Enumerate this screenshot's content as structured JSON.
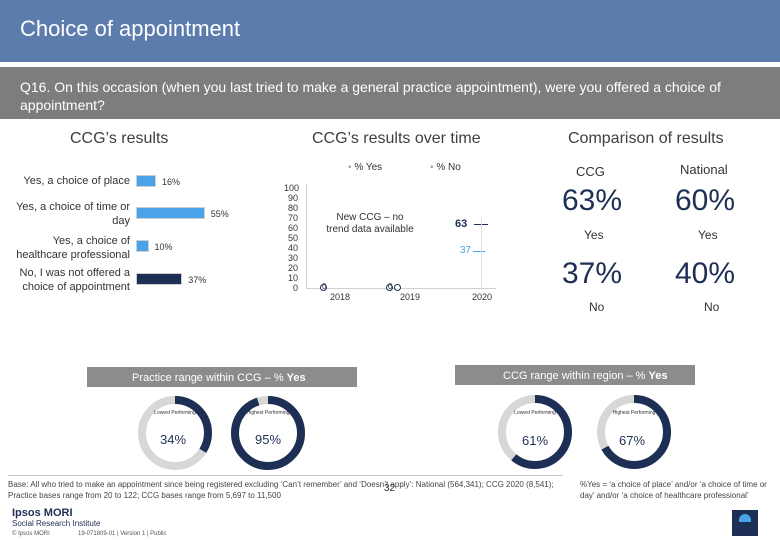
{
  "title": "Choice of appointment",
  "question": "Q16. On this occasion (when you last tried to make a general practice appointment), were you offered a choice of appointment?",
  "ccg_results": {
    "heading": "CCG’s results",
    "rows": [
      {
        "label": "Yes, a choice of place",
        "pct_label": "16%",
        "value": 16
      },
      {
        "label": "Yes, a choice of time or day",
        "pct_label": "55%",
        "value": 55
      },
      {
        "label": "Yes, a choice of healthcare professional",
        "pct_label": "10%",
        "value": 10
      },
      {
        "label": "No, I was not offered a choice of appointment",
        "pct_label": "37%",
        "value": 37
      }
    ]
  },
  "over_time": {
    "heading": "CCG’s results over time",
    "legend_yes": "% Yes",
    "legend_no": "% No",
    "note": "New CCG – no trend data available",
    "x_labels": [
      "2018",
      "2019",
      "2020"
    ],
    "y_ticks": [
      "100",
      "90",
      "80",
      "70",
      "60",
      "50",
      "40",
      "30",
      "20",
      "10",
      "0"
    ],
    "yes_2020": "63",
    "no_2020": "37",
    "zero_a": "0",
    "zero_b": "0"
  },
  "comparison": {
    "heading": "Comparison of results",
    "ccg_head": "CCG",
    "national_head": "National",
    "ccg_yes": "63%",
    "national_yes": "60%",
    "yes_label": "Yes",
    "ccg_no": "37%",
    "national_no": "40%",
    "no_label": "No"
  },
  "practice_range": {
    "label": "Practice range within CCG – % ",
    "label_bold": "Yes",
    "lowest_label": "Lowest Performing",
    "highest_label": "Highest Performing",
    "lowest_value": "34%",
    "highest_value": "95%",
    "lowest_pct": 34,
    "highest_pct": 95
  },
  "region_range": {
    "label": "CCG range within region – % ",
    "label_bold": "Yes",
    "lowest_label": "Lowest Performing",
    "highest_label": "Highest Performing",
    "lowest_value": "61%",
    "highest_value": "67%",
    "lowest_pct": 61,
    "highest_pct": 67
  },
  "footer": {
    "base": "Base: All who tried to make an appointment since being registered excluding ‘Can’t remember’ and ‘Doesn’t apply’: National (564,341); CCG 2020 (8,541); Practice bases range from 20 to 122; CCG bases range from 5,697 to 11,500",
    "note": "%Yes = ‘a choice of place’ and/or ‘a choice of time or day’ and/or ‘a choice of healthcare professional’",
    "page": "32",
    "logo_line1": "Ipsos MORI",
    "logo_line2": "Social Research Institute",
    "copyright": "© Ipsos MORI",
    "version": "19-071809-01 | Version 1 | Public"
  },
  "colors": {
    "title_bar": "#5b7cad",
    "question_bar": "#7d7d7d",
    "bar_blue": "#4aa3e8",
    "navy": "#1e2f55",
    "grey_bar": "#8c8c8c"
  }
}
